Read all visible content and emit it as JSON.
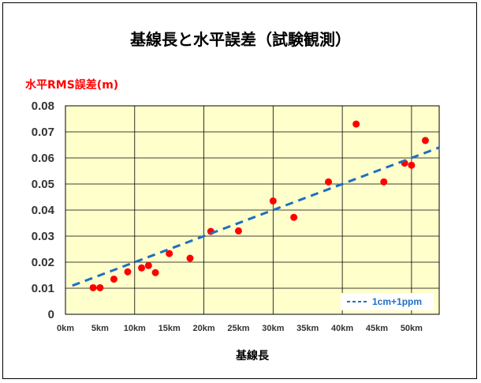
{
  "chart_data": {
    "type": "scatter",
    "title": "基線長と水平誤差（試験観測）",
    "ylabel": "水平RMS誤差(m)",
    "xlabel": "基線長",
    "xlim": [
      0,
      54
    ],
    "ylim": [
      0,
      0.08
    ],
    "x_ticks": [
      {
        "value": 0,
        "label": "0km"
      },
      {
        "value": 5,
        "label": "5km"
      },
      {
        "value": 10,
        "label": "10km"
      },
      {
        "value": 15,
        "label": "15km"
      },
      {
        "value": 20,
        "label": "20km"
      },
      {
        "value": 25,
        "label": "25km"
      },
      {
        "value": 30,
        "label": "30km"
      },
      {
        "value": 35,
        "label": "35km"
      },
      {
        "value": 40,
        "label": "40km"
      },
      {
        "value": 45,
        "label": "45km"
      },
      {
        "value": 50,
        "label": "50km"
      }
    ],
    "y_ticks": [
      {
        "value": 0,
        "label": "0"
      },
      {
        "value": 0.01,
        "label": "0.01"
      },
      {
        "value": 0.02,
        "label": "0.02"
      },
      {
        "value": 0.03,
        "label": "0.03"
      },
      {
        "value": 0.04,
        "label": "0.04"
      },
      {
        "value": 0.05,
        "label": "0.05"
      },
      {
        "value": 0.06,
        "label": "0.06"
      },
      {
        "value": 0.07,
        "label": "0.07"
      },
      {
        "value": 0.08,
        "label": "0.08"
      }
    ],
    "grid": true,
    "series": [
      {
        "type": "scatter",
        "color": "#ff0000",
        "points": [
          {
            "x": 4,
            "y": 0.0102
          },
          {
            "x": 5,
            "y": 0.0102
          },
          {
            "x": 7,
            "y": 0.0135
          },
          {
            "x": 9,
            "y": 0.0163
          },
          {
            "x": 11,
            "y": 0.0178
          },
          {
            "x": 12,
            "y": 0.0187
          },
          {
            "x": 13,
            "y": 0.016
          },
          {
            "x": 15,
            "y": 0.0233
          },
          {
            "x": 18,
            "y": 0.0215
          },
          {
            "x": 21,
            "y": 0.0318
          },
          {
            "x": 25,
            "y": 0.032
          },
          {
            "x": 30,
            "y": 0.0435
          },
          {
            "x": 33,
            "y": 0.0372
          },
          {
            "x": 38,
            "y": 0.0508
          },
          {
            "x": 42,
            "y": 0.073
          },
          {
            "x": 46,
            "y": 0.0508
          },
          {
            "x": 49,
            "y": 0.058
          },
          {
            "x": 50,
            "y": 0.0572
          },
          {
            "x": 52,
            "y": 0.0667
          }
        ]
      },
      {
        "name": "1cm+1ppm",
        "type": "line",
        "style": "dashed",
        "color": "#1f6fc0",
        "x": [
          1,
          54
        ],
        "y": [
          0.011,
          0.064
        ]
      }
    ],
    "legend": "bottom-right",
    "colors": {
      "plot_background": "#ffffcc",
      "grid": "#000000"
    }
  }
}
